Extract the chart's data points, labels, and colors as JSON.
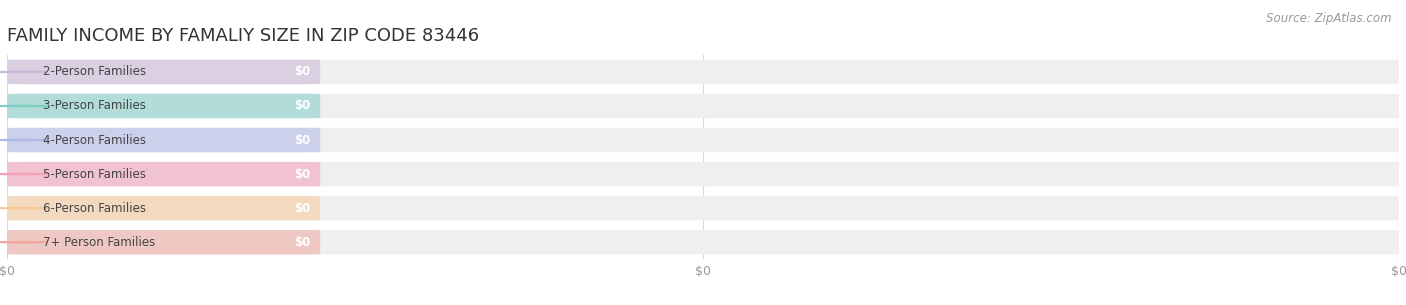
{
  "title": "FAMILY INCOME BY FAMALIY SIZE IN ZIP CODE 83446",
  "source": "Source: ZipAtlas.com",
  "categories": [
    "2-Person Families",
    "3-Person Families",
    "4-Person Families",
    "5-Person Families",
    "6-Person Families",
    "7+ Person Families"
  ],
  "values": [
    0,
    0,
    0,
    0,
    0,
    0
  ],
  "bar_colors": [
    "#c9b8d8",
    "#7ecec4",
    "#b0b8e8",
    "#f4a0b8",
    "#f5c89a",
    "#f0a8a0"
  ],
  "value_label": "$0",
  "x_tick_labels": [
    "$0",
    "$0",
    "$0"
  ],
  "x_tick_positions": [
    0,
    0.5,
    1.0
  ],
  "background_color": "#ffffff",
  "title_fontsize": 13,
  "label_fontsize": 8.5,
  "source_fontsize": 8.5,
  "bar_height": 0.72,
  "figsize": [
    14.06,
    3.05
  ],
  "dpi": 100
}
